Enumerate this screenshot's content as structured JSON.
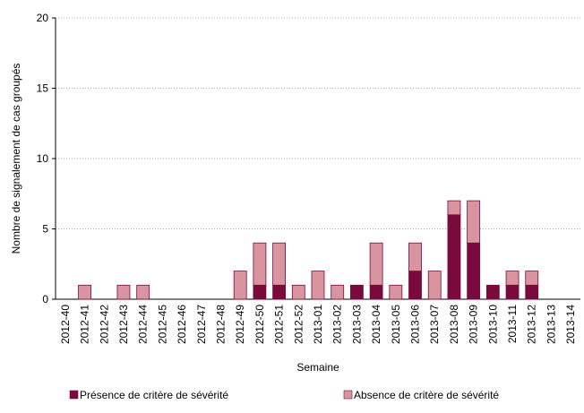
{
  "chart_data": {
    "type": "stacked-bar",
    "y_label": "Nombre de signalement de cas groupés",
    "x_label": "Semaine",
    "categories": [
      "2012-40",
      "2012-41",
      "2012-42",
      "2012-43",
      "2012-44",
      "2012-45",
      "2012-46",
      "2012-47",
      "2012-48",
      "2012-49",
      "2012-50",
      "2012-51",
      "2012-52",
      "2013-01",
      "2013-02",
      "2013-03",
      "2013-04",
      "2013-05",
      "2013-06",
      "2013-07",
      "2013-08",
      "2013-09",
      "2013-10",
      "2013-11",
      "2013-12",
      "2013-13",
      "2013-14"
    ],
    "series": [
      {
        "name": "Présence de critère de sévérité",
        "color": "#7a0a3b",
        "values": [
          0,
          0,
          0,
          0,
          0,
          0,
          0,
          0,
          0,
          0,
          1,
          1,
          0,
          0,
          0,
          1,
          1,
          0,
          2,
          0,
          6,
          4,
          1,
          1,
          1,
          0,
          0
        ]
      },
      {
        "name": "Absence de critère de sévérité",
        "color": "#d9959f",
        "values": [
          0,
          1,
          0,
          1,
          1,
          0,
          0,
          0,
          0,
          2,
          3,
          3,
          1,
          2,
          1,
          0,
          3,
          1,
          2,
          2,
          1,
          3,
          0,
          1,
          1,
          0,
          0
        ]
      }
    ],
    "ylim": [
      0,
      20
    ],
    "yticks": [
      0,
      5,
      10,
      15,
      20
    ],
    "grid": true
  }
}
